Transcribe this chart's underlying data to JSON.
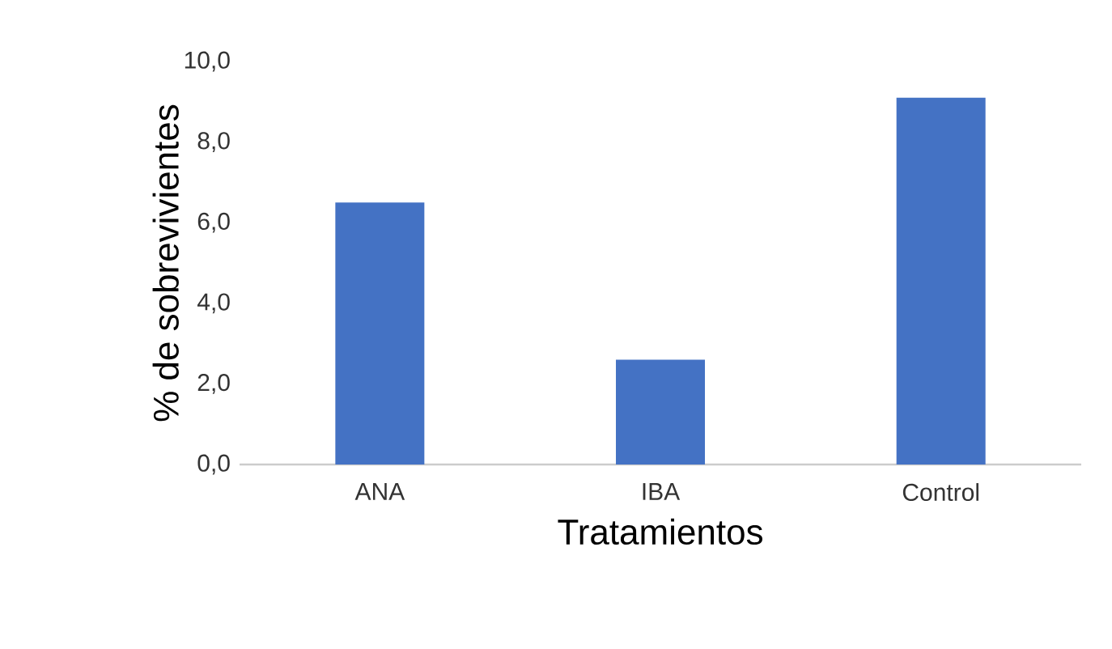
{
  "chart_data": {
    "type": "bar",
    "xlabel": "Tratamientos",
    "ylabel": "% de sobrevivientes",
    "categories": [
      "ANA",
      "IBA",
      "Control"
    ],
    "values": [
      6.5,
      2.6,
      9.1
    ],
    "color": "#4472c4",
    "ylim": [
      0,
      10
    ],
    "yticks": [
      {
        "value": 0,
        "label": "0,0"
      },
      {
        "value": 2,
        "label": "2,0"
      },
      {
        "value": 4,
        "label": "4,0"
      },
      {
        "value": 6,
        "label": "6,0"
      },
      {
        "value": 8,
        "label": "8,0"
      },
      {
        "value": 10,
        "label": "10,0"
      }
    ]
  }
}
